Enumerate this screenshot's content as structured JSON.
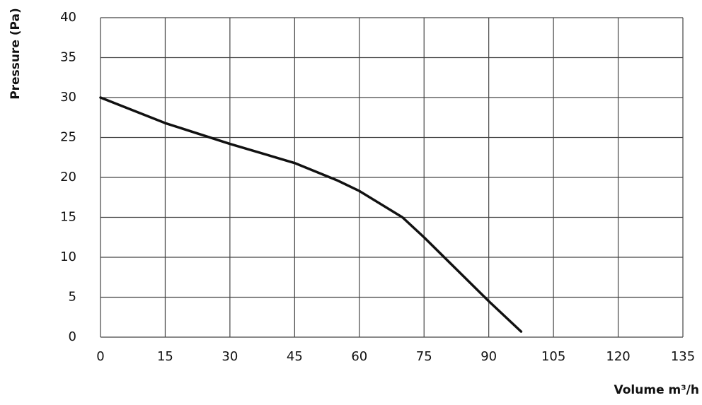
{
  "chart_data": {
    "type": "line",
    "x_label": "Volume m³/h",
    "y_label": "Pressure (Pa)",
    "x": [
      0,
      15,
      30,
      45,
      55,
      60,
      70,
      75,
      90,
      97.5
    ],
    "values": [
      30,
      26.8,
      24.2,
      21.8,
      19.6,
      18.3,
      15,
      12.5,
      4.5,
      0.7
    ],
    "color": "#111111",
    "xlim": [
      0,
      135
    ],
    "xticks": [
      0,
      15,
      30,
      45,
      60,
      75,
      90,
      105,
      120,
      135
    ],
    "ylim": [
      0,
      40
    ],
    "yticks": [
      0,
      5,
      10,
      15,
      20,
      25,
      30,
      35,
      40
    ],
    "grid": true
  }
}
